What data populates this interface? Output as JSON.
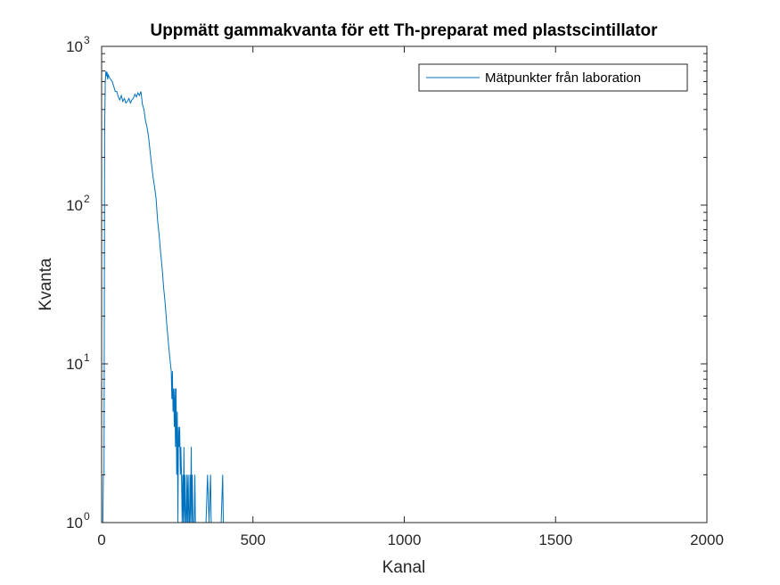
{
  "chart_data": {
    "type": "line",
    "title": "Uppmätt gammakvanta för ett Th-preparat med plastscintillator",
    "xlabel": "Kanal",
    "ylabel": "Kvanta",
    "xlim": [
      0,
      2000
    ],
    "ylim": [
      1,
      1000
    ],
    "yscale": "log",
    "xticks": [
      0,
      500,
      1000,
      1500,
      2000
    ],
    "xtick_labels": [
      "0",
      "500",
      "1000",
      "1500",
      "2000"
    ],
    "yticks": [
      1,
      10,
      100,
      1000
    ],
    "ytick_labels": [
      {
        "base": "10",
        "exp": "0"
      },
      {
        "base": "10",
        "exp": "1"
      },
      {
        "base": "10",
        "exp": "2"
      },
      {
        "base": "10",
        "exp": "3"
      }
    ],
    "grid": false,
    "legend_position": "top-right",
    "series": [
      {
        "name": "Mätpunkter från laboration",
        "color": "#0072BD",
        "x": [
          0,
          2,
          4,
          6,
          8,
          10,
          12,
          14,
          16,
          18,
          20,
          22,
          25,
          30,
          35,
          40,
          45,
          50,
          55,
          60,
          65,
          70,
          75,
          80,
          85,
          90,
          95,
          100,
          105,
          110,
          115,
          120,
          125,
          130,
          135,
          140,
          145,
          150,
          155,
          160,
          165,
          170,
          175,
          180,
          185,
          190,
          195,
          200,
          205,
          210,
          215,
          220,
          225,
          230,
          232,
          234,
          236,
          238,
          240,
          242,
          244,
          246,
          248,
          250,
          252,
          254,
          256,
          258,
          260,
          262,
          264,
          266,
          268,
          270,
          272,
          274,
          276,
          278,
          280,
          282,
          284,
          286,
          288,
          290,
          292,
          294,
          296,
          298,
          300,
          302,
          304,
          306,
          308,
          310,
          315,
          320,
          325,
          330,
          335,
          340,
          345,
          350,
          355,
          360,
          362,
          364,
          366,
          370,
          380,
          390,
          395,
          400,
          402,
          404,
          406,
          410,
          420,
          430,
          440,
          450
        ],
        "y": [
          1,
          1,
          1,
          2,
          2,
          300,
          600,
          700,
          650,
          690,
          620,
          660,
          640,
          620,
          600,
          560,
          520,
          520,
          480,
          460,
          490,
          450,
          470,
          440,
          450,
          470,
          440,
          460,
          470,
          500,
          480,
          510,
          490,
          520,
          430,
          400,
          340,
          310,
          270,
          220,
          180,
          150,
          130,
          110,
          80,
          65,
          50,
          40,
          30,
          24,
          18,
          14,
          11,
          9,
          6,
          9,
          5,
          7,
          4,
          7,
          3,
          7,
          2,
          5,
          1,
          4,
          3,
          4,
          2,
          3,
          2,
          1,
          2,
          1,
          3,
          1,
          2,
          1,
          1,
          2,
          1,
          2,
          1,
          1,
          2,
          1,
          3,
          1,
          2,
          1,
          1,
          1,
          2,
          1,
          1,
          1,
          1,
          1,
          1,
          1,
          1,
          2,
          1,
          2,
          1,
          1,
          1,
          1,
          1,
          1,
          1,
          2,
          1,
          1,
          1,
          1,
          1,
          1,
          1,
          1
        ]
      }
    ]
  }
}
